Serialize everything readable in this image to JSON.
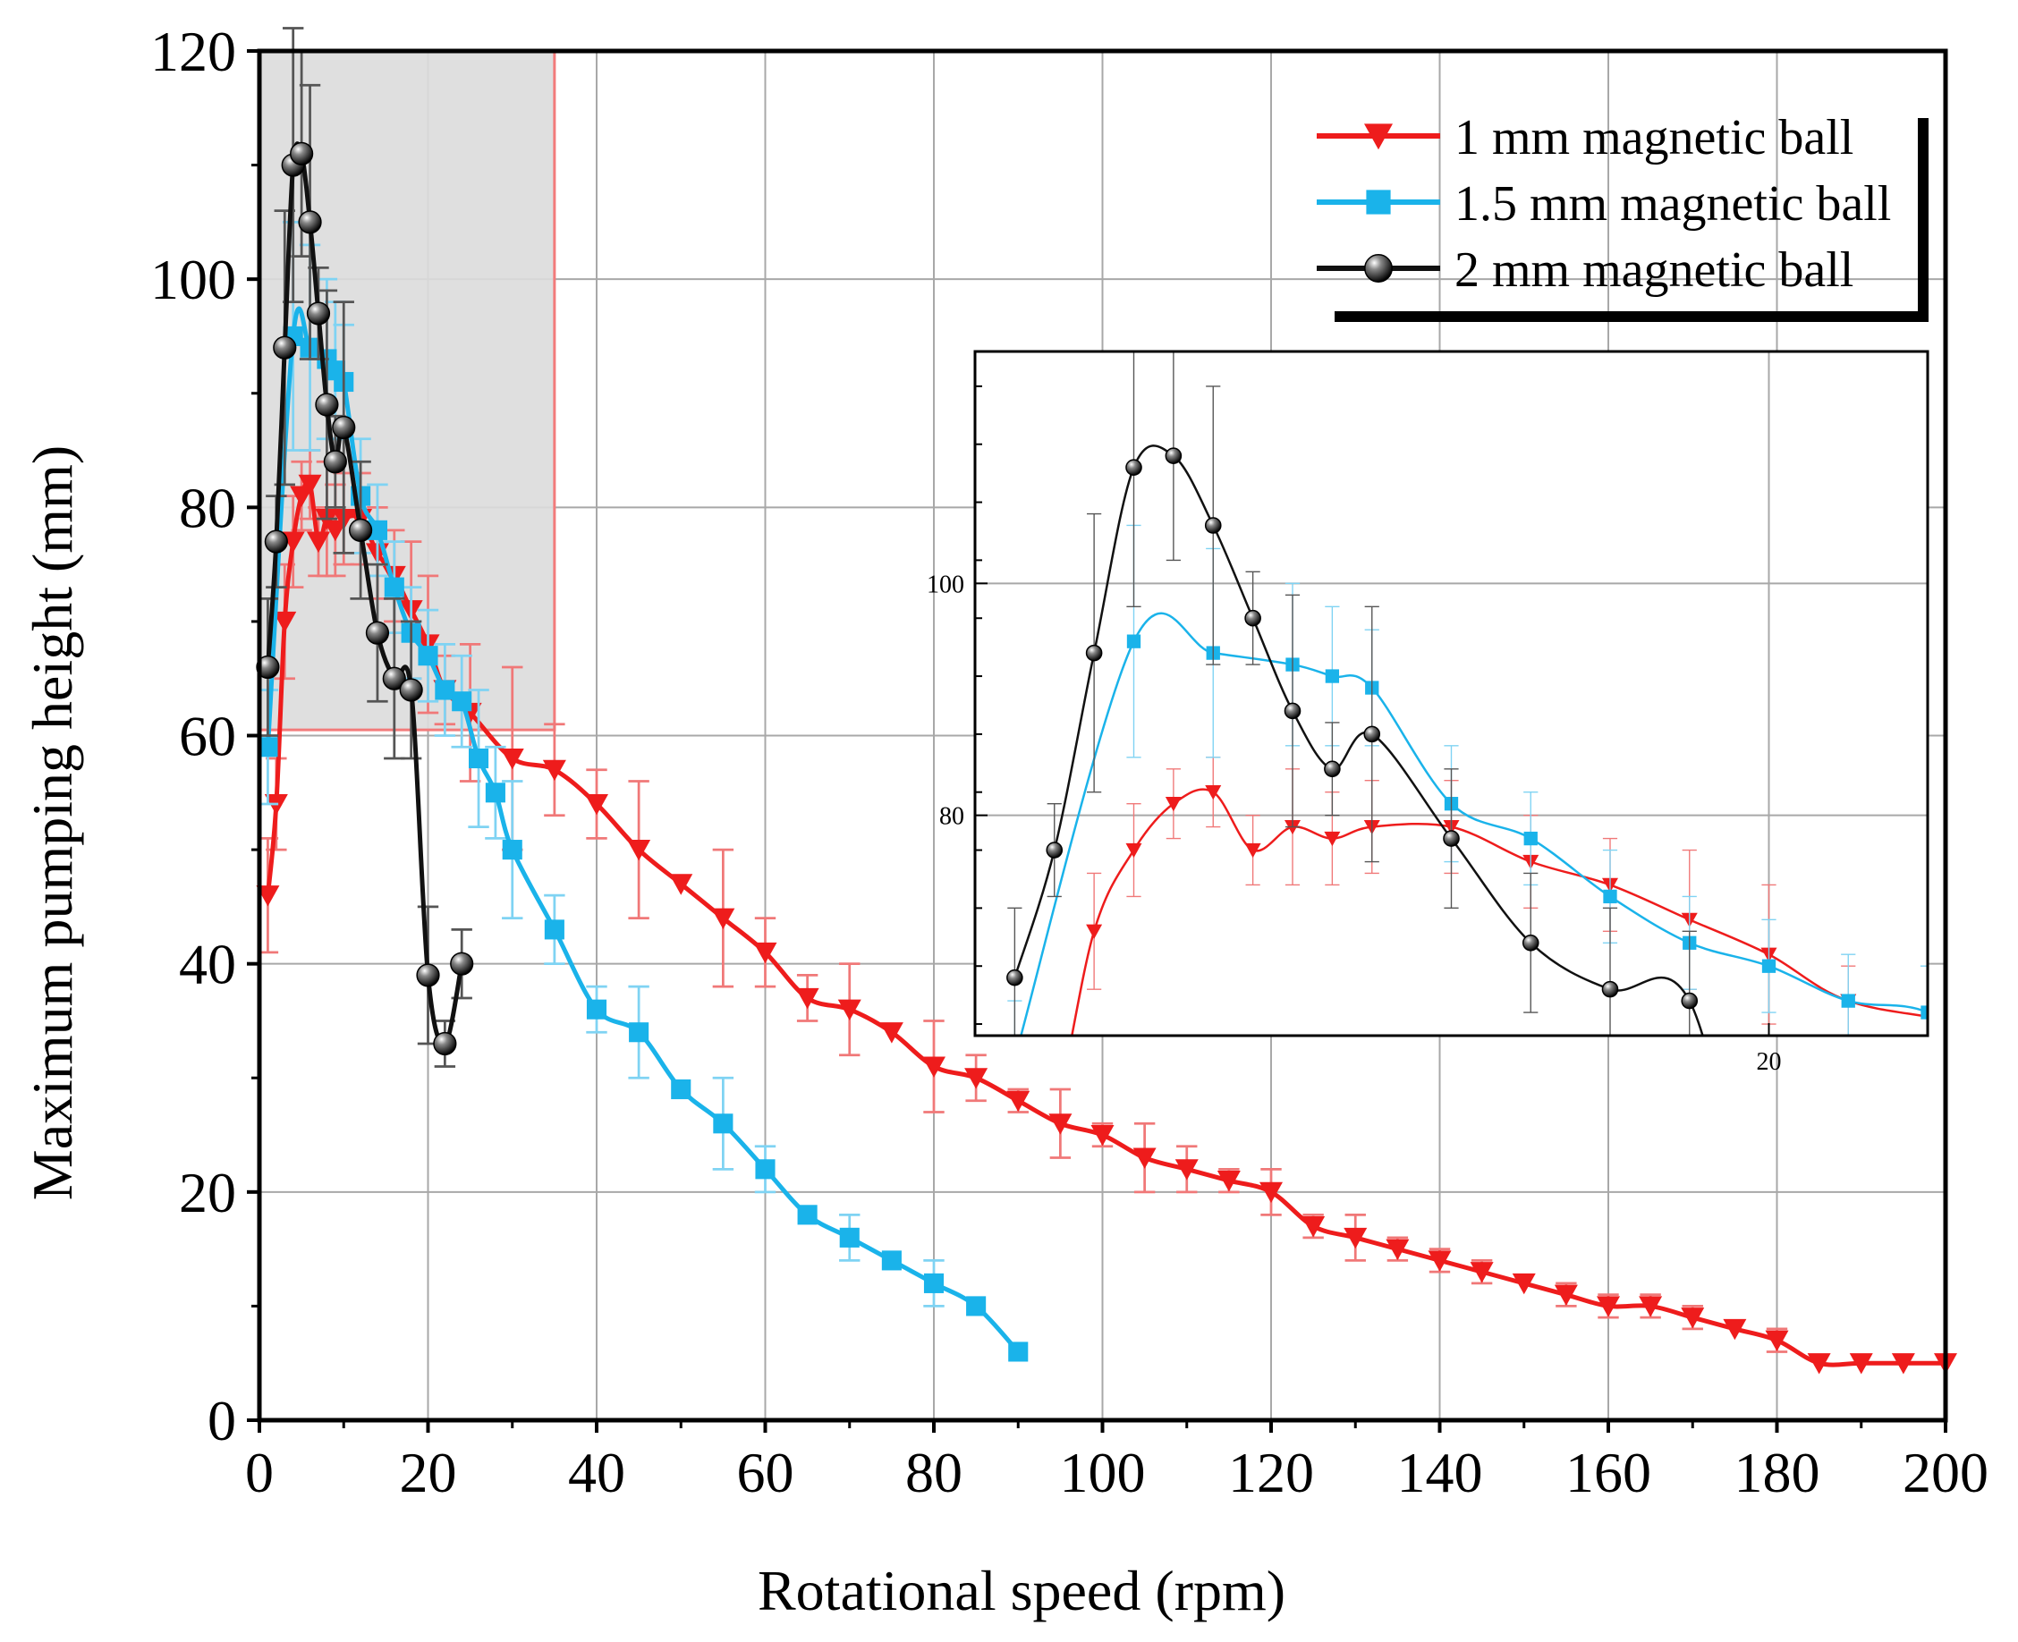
{
  "colors": {
    "red": "#ee1c1c",
    "red_err": "#f07878",
    "blue": "#1ab3ea",
    "blue_err": "#7fd3f3",
    "black": "#111111",
    "black_err": "#555555",
    "grid": "#a8a8a8",
    "highlight_fill": "#dcdcdc",
    "highlight_stroke": "#f27b7b"
  },
  "chart_data": [
    {
      "id": "main",
      "type": "line",
      "title": "",
      "xlabel": "Rotational speed (rpm)",
      "ylabel": "Maximum pumping height (mm)",
      "xlim": [
        0,
        200
      ],
      "ylim": [
        0,
        120
      ],
      "xticks": [
        0,
        20,
        40,
        60,
        80,
        100,
        120,
        140,
        160,
        180,
        200
      ],
      "yticks": [
        0,
        20,
        40,
        60,
        80,
        100,
        120
      ],
      "grid": true,
      "legend_position": "top-right",
      "highlight_region": {
        "x": [
          0,
          35
        ],
        "y": [
          60.5,
          120
        ]
      },
      "series": [
        {
          "name": "1 mm magnetic ball",
          "marker": "triangle-down",
          "x": [
            1,
            2,
            3,
            4,
            5,
            6,
            7,
            8,
            9,
            10,
            12,
            14,
            16,
            18,
            20,
            22,
            25,
            30,
            35,
            40,
            45,
            50,
            55,
            60,
            65,
            70,
            75,
            80,
            85,
            90,
            95,
            100,
            105,
            110,
            115,
            120,
            125,
            130,
            135,
            140,
            145,
            150,
            155,
            160,
            165,
            170,
            175,
            180,
            185,
            190,
            195,
            200
          ],
          "y": [
            46,
            54,
            70,
            77,
            81,
            82,
            77,
            79,
            78,
            79,
            79,
            76,
            74,
            71,
            68,
            64,
            62,
            58,
            57,
            54,
            50,
            47,
            44,
            41,
            37,
            36,
            34,
            31,
            30,
            28,
            26,
            25,
            23,
            22,
            21,
            20,
            17,
            16,
            15,
            14,
            13,
            12,
            11,
            10,
            10,
            9,
            8,
            7,
            5,
            5,
            5,
            5
          ],
          "err": [
            5,
            4,
            5,
            4,
            3,
            3,
            3,
            5,
            4,
            4,
            4,
            4,
            4,
            6,
            6,
            3,
            6,
            8,
            4,
            3,
            6,
            0,
            6,
            3,
            2,
            4,
            0,
            4,
            2,
            1,
            3,
            1,
            3,
            2,
            1,
            2,
            1,
            2,
            1,
            1,
            1,
            0,
            1,
            1,
            1,
            1,
            0,
            1,
            0,
            0,
            0,
            0
          ]
        },
        {
          "name": "1.5 mm magnetic ball",
          "marker": "square",
          "x": [
            1,
            4,
            6,
            8,
            9,
            10,
            12,
            14,
            16,
            18,
            20,
            22,
            24,
            26,
            28,
            30,
            35,
            40,
            45,
            50,
            55,
            60,
            65,
            70,
            75,
            80,
            85,
            90
          ],
          "y": [
            59,
            95,
            94,
            93,
            92,
            91,
            81,
            78,
            73,
            69,
            67,
            64,
            63,
            58,
            55,
            50,
            43,
            36,
            34,
            29,
            26,
            22,
            18,
            16,
            14,
            12,
            10,
            6
          ],
          "err": [
            5,
            10,
            9,
            7,
            6,
            5,
            5,
            4,
            4,
            4,
            4,
            4,
            4,
            6,
            4,
            6,
            3,
            2,
            4,
            0,
            4,
            2,
            0,
            2,
            0,
            2,
            0,
            0
          ]
        },
        {
          "name": "2 mm magnetic ball",
          "marker": "sphere",
          "x": [
            1,
            2,
            3,
            4,
            5,
            6,
            7,
            8,
            9,
            10,
            12,
            14,
            16,
            18,
            20,
            22,
            24
          ],
          "y": [
            66,
            77,
            94,
            110,
            111,
            105,
            97,
            89,
            84,
            87,
            78,
            69,
            65,
            64,
            39,
            33,
            40
          ],
          "err": [
            6,
            4,
            12,
            12,
            9,
            12,
            4,
            10,
            4,
            11,
            6,
            6,
            7,
            6,
            6,
            2,
            3
          ]
        }
      ]
    },
    {
      "id": "inset",
      "type": "line",
      "xlabel": "",
      "ylabel": "",
      "xlim": [
        0,
        24
      ],
      "ylim": [
        61,
        120
      ],
      "xticks": [
        20
      ],
      "yticks": [
        80,
        100
      ],
      "grid": true
    }
  ]
}
